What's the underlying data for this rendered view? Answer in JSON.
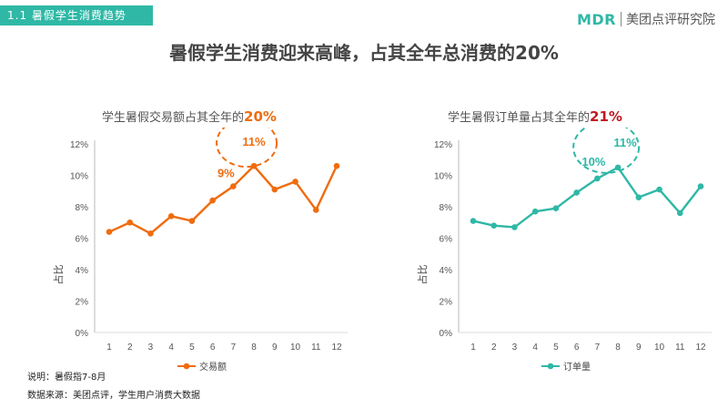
{
  "header": {
    "section_tag": "1.1  暑假学生消费趋势",
    "logo_mark": "MDR",
    "logo_text": "美团点评研究院"
  },
  "main_title": "暑假学生消费迎来高峰，占其全年总消费的20%",
  "chart_data": [
    {
      "type": "line",
      "title_prefix": "学生暑假交易额占其全年的",
      "title_highlight": "20%",
      "ylabel": "占比",
      "categories": [
        "1",
        "2",
        "3",
        "4",
        "5",
        "6",
        "7",
        "8",
        "9",
        "10",
        "11",
        "12"
      ],
      "y_ticks": [
        "0%",
        "2%",
        "4%",
        "6%",
        "8%",
        "10%",
        "12%"
      ],
      "ylim": [
        0,
        12
      ],
      "series": [
        {
          "name": "交易额",
          "values": [
            6.4,
            7.0,
            6.3,
            7.4,
            7.1,
            8.4,
            9.3,
            10.6,
            9.1,
            9.6,
            7.8,
            10.6
          ]
        }
      ],
      "annotations": [
        "9%",
        "11%"
      ],
      "grid": false,
      "legend_position": "bottom",
      "color": "#ef6c0e"
    },
    {
      "type": "line",
      "title_prefix": "学生暑假订单量占其全年的",
      "title_highlight": "21%",
      "ylabel": "占比",
      "categories": [
        "1",
        "2",
        "3",
        "4",
        "5",
        "6",
        "7",
        "8",
        "9",
        "10",
        "11",
        "12"
      ],
      "y_ticks": [
        "0%",
        "2%",
        "4%",
        "6%",
        "8%",
        "10%",
        "12%"
      ],
      "ylim": [
        0,
        12
      ],
      "series": [
        {
          "name": "订单量",
          "values": [
            7.1,
            6.8,
            6.7,
            7.7,
            7.9,
            8.9,
            9.8,
            10.5,
            8.6,
            9.1,
            7.6,
            9.3
          ]
        }
      ],
      "annotations": [
        "10%",
        "11%"
      ],
      "grid": false,
      "legend_position": "bottom",
      "color": "#2fb8a6"
    }
  ],
  "notes": {
    "note1": "说明：暑假指7-8月",
    "note2": "数据来源：美团点评，学生用户消费大数据"
  }
}
